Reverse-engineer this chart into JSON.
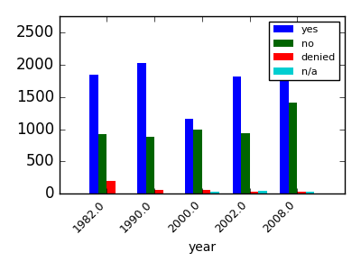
{
  "categories": [
    1982.0,
    1990.0,
    2000.0,
    2002.0,
    2008.0
  ],
  "series": {
    "yes": [
      1850,
      2020,
      1165,
      1820,
      1975
    ],
    "no": [
      920,
      880,
      990,
      935,
      1415
    ],
    "denied": [
      195,
      65,
      55,
      30,
      25
    ],
    "n/a": [
      8,
      8,
      30,
      40,
      28
    ]
  },
  "colors": {
    "yes": "#0000ff",
    "no": "#006400",
    "denied": "#ff0000",
    "n/a": "#00ced1"
  },
  "xlabel": "year",
  "ylim": [
    0,
    2750
  ],
  "yticks": [
    0,
    500,
    1000,
    1500,
    2000,
    2500
  ],
  "bar_width": 0.18,
  "legend_loc": "upper right",
  "axes_bg": "#ffffff",
  "fig_bg": "#e8e8e8"
}
